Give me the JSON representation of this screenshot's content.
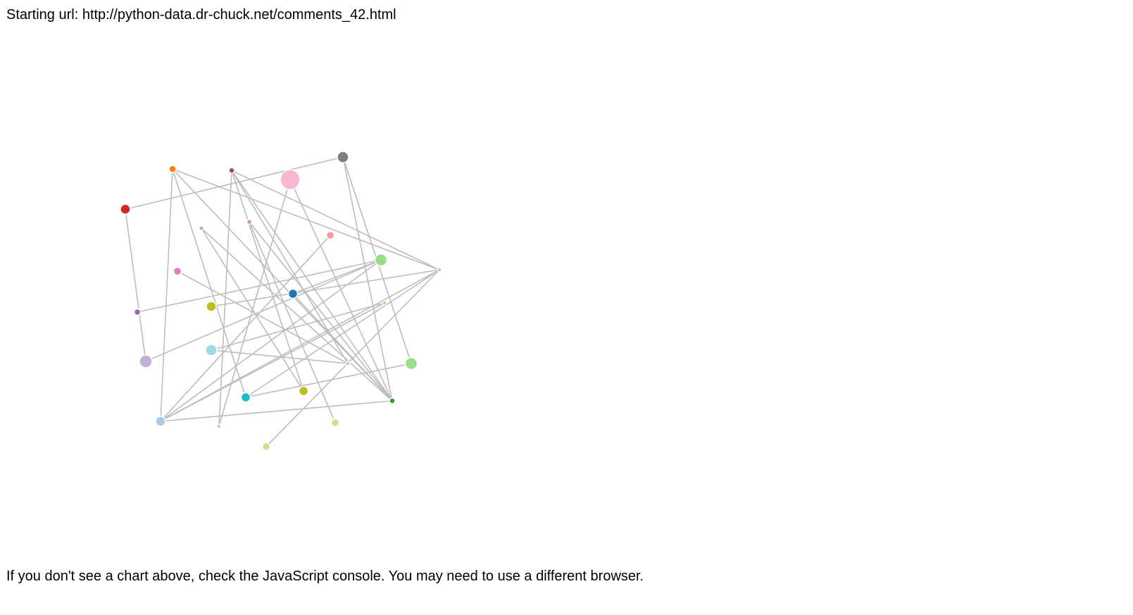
{
  "header": {
    "starting_url_text": "Starting url: http://python-data.dr-chuck.net/comments_42.html"
  },
  "footer": {
    "note": "If you don't see a chart above, check the JavaScript console. You may need to use a different browser."
  },
  "graph": {
    "edge_color": "#bdbdbd",
    "nodes": [
      {
        "id": "n-red",
        "color": "#d62728"
      },
      {
        "id": "n-orange",
        "color": "#ff7f0e"
      },
      {
        "id": "n-brown",
        "color": "#8c564b"
      },
      {
        "id": "n-pink-large",
        "color": "#f7b6d2"
      },
      {
        "id": "n-gray",
        "color": "#7f7f7f"
      },
      {
        "id": "n-tan-small",
        "color": "#c49c94"
      },
      {
        "id": "n-rose-small",
        "color": "#c49c94"
      },
      {
        "id": "n-salmon",
        "color": "#ff9896"
      },
      {
        "id": "n-lightgreen-1",
        "color": "#98df8a"
      },
      {
        "id": "n-lightgray-right",
        "color": "#c7c7c7"
      },
      {
        "id": "n-magenta",
        "color": "#e377c2"
      },
      {
        "id": "n-blue",
        "color": "#1f77b4"
      },
      {
        "id": "n-peach-small",
        "color": "#ffbb78"
      },
      {
        "id": "n-purple",
        "color": "#9467bd"
      },
      {
        "id": "n-olive-1",
        "color": "#bcbd22"
      },
      {
        "id": "n-lavender",
        "color": "#c5b0d5"
      },
      {
        "id": "n-lightcyan",
        "color": "#9edae5"
      },
      {
        "id": "n-gray-small-mid",
        "color": "#c7c7c7"
      },
      {
        "id": "n-lightgreen-2",
        "color": "#98df8a"
      },
      {
        "id": "n-cyan",
        "color": "#17becf"
      },
      {
        "id": "n-olive-2",
        "color": "#bcbd22"
      },
      {
        "id": "n-green",
        "color": "#2ca02c"
      },
      {
        "id": "n-lightblue",
        "color": "#aec7e8"
      },
      {
        "id": "n-gray-small-bottom",
        "color": "#c7c7c7"
      },
      {
        "id": "n-khaki-1",
        "color": "#dbdb8d"
      },
      {
        "id": "n-khaki-2",
        "color": "#dbdb8d"
      }
    ],
    "edges": [
      [
        "n-red",
        "n-gray"
      ],
      [
        "n-red",
        "n-lavender"
      ],
      [
        "n-orange",
        "n-lightblue"
      ],
      [
        "n-orange",
        "n-green"
      ],
      [
        "n-orange",
        "n-cyan"
      ],
      [
        "n-orange",
        "n-lightgray-right"
      ],
      [
        "n-brown",
        "n-gray-small-bottom"
      ],
      [
        "n-brown",
        "n-olive-2"
      ],
      [
        "n-brown",
        "n-green"
      ],
      [
        "n-brown",
        "n-gray-small-mid"
      ],
      [
        "n-brown",
        "n-lightgray-right"
      ],
      [
        "n-pink-large",
        "n-gray-small-bottom"
      ],
      [
        "n-pink-large",
        "n-green"
      ],
      [
        "n-gray",
        "n-lightgreen-2"
      ],
      [
        "n-gray",
        "n-green"
      ],
      [
        "n-tan-small",
        "n-green"
      ],
      [
        "n-tan-small",
        "n-olive-2"
      ],
      [
        "n-rose-small",
        "n-khaki-1"
      ],
      [
        "n-rose-small",
        "n-green"
      ],
      [
        "n-salmon",
        "n-lightblue"
      ],
      [
        "n-lightgreen-1",
        "n-purple"
      ],
      [
        "n-lightgreen-1",
        "n-lavender"
      ],
      [
        "n-lightgreen-1",
        "n-lightblue"
      ],
      [
        "n-lightgray-right",
        "n-olive-1"
      ],
      [
        "n-lightgray-right",
        "n-lightblue"
      ],
      [
        "n-lightgray-right",
        "n-khaki-2"
      ],
      [
        "n-lightgray-right",
        "n-cyan"
      ],
      [
        "n-magenta",
        "n-gray-small-mid"
      ],
      [
        "n-blue",
        "n-lightgreen-1"
      ],
      [
        "n-blue",
        "n-green"
      ],
      [
        "n-peach-small",
        "n-lightcyan"
      ],
      [
        "n-peach-small",
        "n-lightblue"
      ],
      [
        "n-lightgreen-2",
        "n-cyan"
      ],
      [
        "n-green",
        "n-lightblue"
      ],
      [
        "n-gray-small-mid",
        "n-lightcyan"
      ]
    ]
  }
}
